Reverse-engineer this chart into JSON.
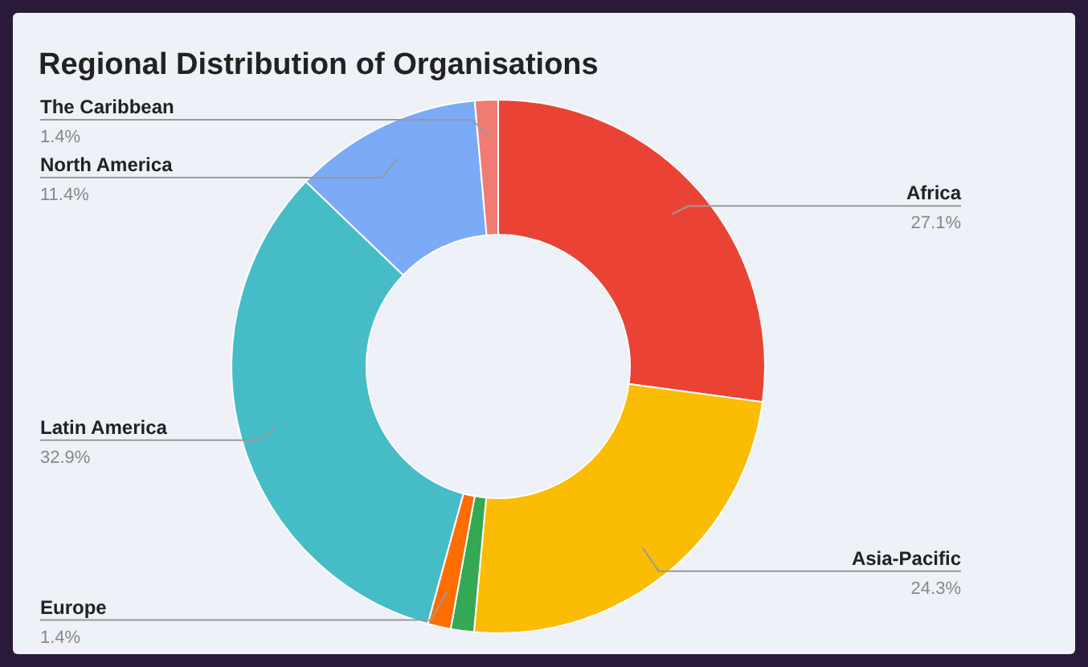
{
  "chart_data": {
    "type": "donut",
    "title": "Regional Distribution of Organisations",
    "categories": [
      "Africa",
      "Asia-Pacific",
      null,
      "Europe",
      "Latin America",
      "North America",
      "The Caribbean"
    ],
    "values": [
      27.1,
      24.3,
      1.4,
      1.4,
      32.9,
      11.4,
      1.4
    ],
    "value_labels": [
      "27.1%",
      "24.3%",
      null,
      "1.4%",
      "32.9%",
      "11.4%",
      "1.4%"
    ],
    "colors": [
      "#ea4335",
      "#fbbc04",
      "#34a853",
      "#ff6d01",
      "#46bdc6",
      "#7baaf7",
      "#f07b72"
    ]
  }
}
